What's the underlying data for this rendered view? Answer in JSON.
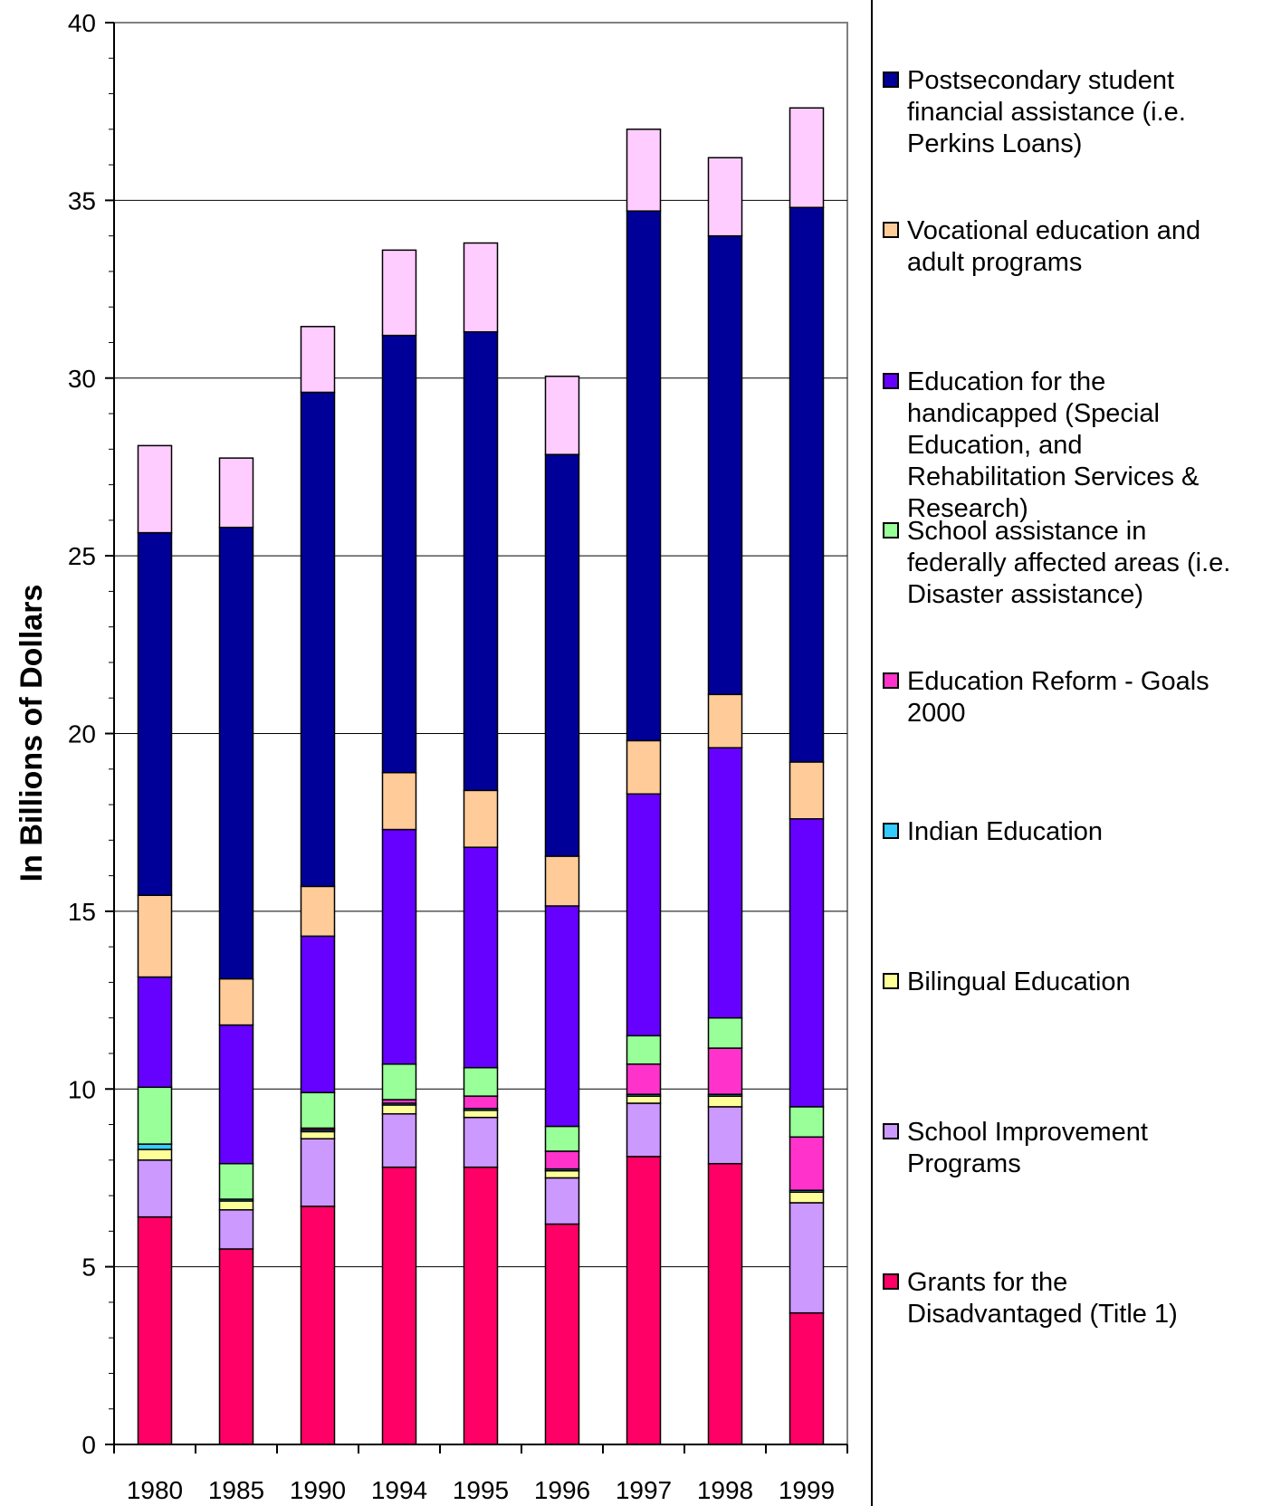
{
  "chart_data": {
    "type": "bar",
    "stacked": true,
    "ylabel": "In Billions of Dollars",
    "ylim": [
      0,
      40
    ],
    "ytick_step": 5,
    "grid": true,
    "legend_position": "right",
    "categories": [
      "1980",
      "1985",
      "1990",
      "1994",
      "1995",
      "1996",
      "1997",
      "1998",
      "1999"
    ],
    "yticks": [
      "0",
      "5",
      "10",
      "15",
      "20",
      "25",
      "30",
      "35",
      "40"
    ],
    "series": [
      {
        "name": "Grants for the\nDisadvantaged (Title 1)",
        "color": "#ff0066",
        "values": [
          6.4,
          5.5,
          6.7,
          7.8,
          7.8,
          6.2,
          8.1,
          7.9,
          3.7
        ]
      },
      {
        "name": "School Improvement\nPrograms",
        "color": "#cc99ff",
        "values": [
          1.6,
          1.1,
          1.9,
          1.5,
          1.4,
          1.3,
          1.5,
          1.6,
          3.1
        ]
      },
      {
        "name": "Bilingual Education",
        "color": "#ffff99",
        "values": [
          0.3,
          0.25,
          0.2,
          0.25,
          0.2,
          0.2,
          0.2,
          0.3,
          0.3
        ]
      },
      {
        "name": "Indian Education",
        "color": "#33ccff",
        "values": [
          0.15,
          0.05,
          0.05,
          0.05,
          0.05,
          0.05,
          0.05,
          0.05,
          0.05
        ]
      },
      {
        "name": "Education Reform - Goals\n2000",
        "color": "#ff33cc",
        "values": [
          0,
          0,
          0.05,
          0.1,
          0.35,
          0.5,
          0.85,
          1.3,
          1.5
        ]
      },
      {
        "name": "School assistance in\nfederally affected areas (i.e.\nDisaster assistance)",
        "color": "#99ff99",
        "values": [
          1.6,
          1.0,
          1.0,
          1.0,
          0.8,
          0.7,
          0.8,
          0.85,
          0.85
        ]
      },
      {
        "name": "Education for the\nhandicapped (Special\nEducation, and\nRehabilitation Services &\nResearch)",
        "color": "#6600ff",
        "values": [
          3.1,
          3.9,
          4.4,
          6.6,
          6.2,
          6.2,
          6.8,
          7.6,
          8.1
        ]
      },
      {
        "name": "Vocational education and\nadult programs",
        "color": "#ffcc99",
        "values": [
          2.3,
          1.3,
          1.4,
          1.6,
          1.6,
          1.4,
          1.5,
          1.5,
          1.6
        ]
      },
      {
        "name": "Postsecondary student\nfinancial assistance (i.e.\nPerkins Loans)",
        "color": "#000099",
        "values": [
          10.2,
          12.7,
          13.9,
          12.3,
          12.9,
          11.3,
          14.9,
          12.9,
          15.6
        ]
      },
      {
        "name": "",
        "color": "#ffccff",
        "values": [
          2.45,
          1.95,
          1.85,
          2.4,
          2.5,
          2.2,
          2.3,
          2.2,
          2.8
        ]
      }
    ]
  }
}
